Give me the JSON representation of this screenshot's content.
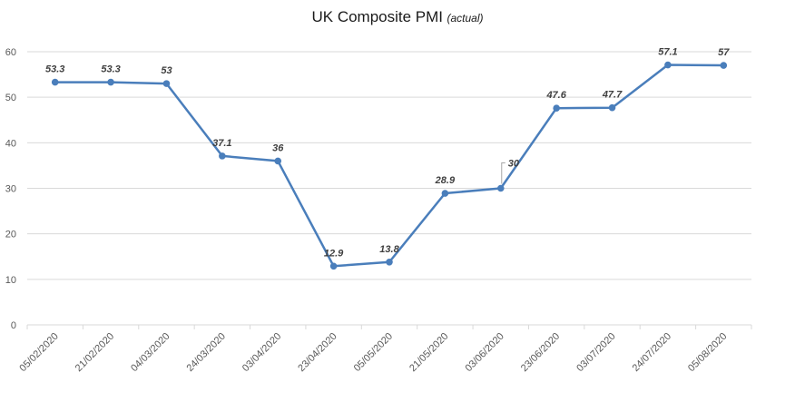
{
  "chart_data": {
    "type": "line",
    "title": "UK Composite PMI",
    "subtitle": "(actual)",
    "xlabel": "",
    "ylabel": "",
    "categories": [
      "05/02/2020",
      "21/02/2020",
      "04/03/2020",
      "24/03/2020",
      "03/04/2020",
      "23/04/2020",
      "05/05/2020",
      "21/05/2020",
      "03/06/2020",
      "23/06/2020",
      "03/07/2020",
      "24/07/2020",
      "05/08/2020"
    ],
    "values": [
      53.3,
      53.3,
      53,
      37.1,
      36,
      12.9,
      13.8,
      28.9,
      30,
      47.6,
      47.7,
      57.1,
      57
    ],
    "data_labels": [
      "53.3",
      "53.3",
      "53",
      "37.1",
      "36",
      "12.9",
      "13.8",
      "28.9",
      "30",
      "47.6",
      "47.7",
      "57.1",
      "57"
    ],
    "ylim": [
      0,
      60
    ],
    "yticks": [
      0,
      10,
      20,
      30,
      40,
      50,
      60
    ],
    "grid": true,
    "legend": "none",
    "colors": {
      "line": "#4a7ebb",
      "grid": "#d9d9d9",
      "axis": "#d9d9d9",
      "label": "#404040",
      "tick": "#595959"
    }
  }
}
